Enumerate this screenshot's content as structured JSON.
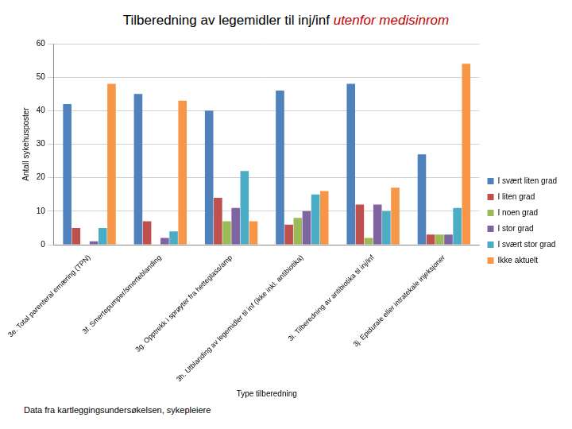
{
  "chart_data": {
    "type": "bar",
    "title": "Tilberedning av legemidler til inj/inf utenfor medisinrom",
    "x_label": "Type tilberedning",
    "y_label": "Antall sykehusposter",
    "source": "Data fra kartleggingsundersøkelsen, sykepleiere",
    "categories": [
      "3e. Total parenteral ernæring (TPN)",
      "3f. Smertepumper/smerteblanding",
      "3g. Opptrekk i sprøyter fra hetteglass/amp",
      "3h. Utblanding av legemidler til inf (ikke inkl. antibiotika)",
      "3i. Tilberedning av antibiotika til inj/inf",
      "3j. Epidurale eller intratekale injeksjoner"
    ],
    "series": [
      {
        "name": "I svært liten grad",
        "color": "#4f81bd",
        "values": [
          42,
          45,
          40,
          46,
          48,
          27
        ]
      },
      {
        "name": "I liten grad",
        "color": "#c0504d",
        "values": [
          5,
          7,
          14,
          6,
          12,
          3
        ]
      },
      {
        "name": "I noen grad",
        "color": "#9bbb59",
        "values": [
          0,
          0,
          7,
          8,
          2,
          3
        ]
      },
      {
        "name": "I stor grad",
        "color": "#8064a2",
        "values": [
          1,
          2,
          11,
          10,
          12,
          3
        ]
      },
      {
        "name": "I svært stor grad",
        "color": "#4bacc6",
        "values": [
          5,
          4,
          22,
          15,
          10,
          11
        ]
      },
      {
        "name": "Ikke aktuelt",
        "color": "#f79646",
        "values": [
          48,
          43,
          7,
          16,
          17,
          54
        ]
      }
    ],
    "ylim": [
      0,
      60
    ],
    "yticks": [
      0,
      10,
      20,
      30,
      40,
      50,
      60
    ],
    "grid": true,
    "legend": "right"
  }
}
